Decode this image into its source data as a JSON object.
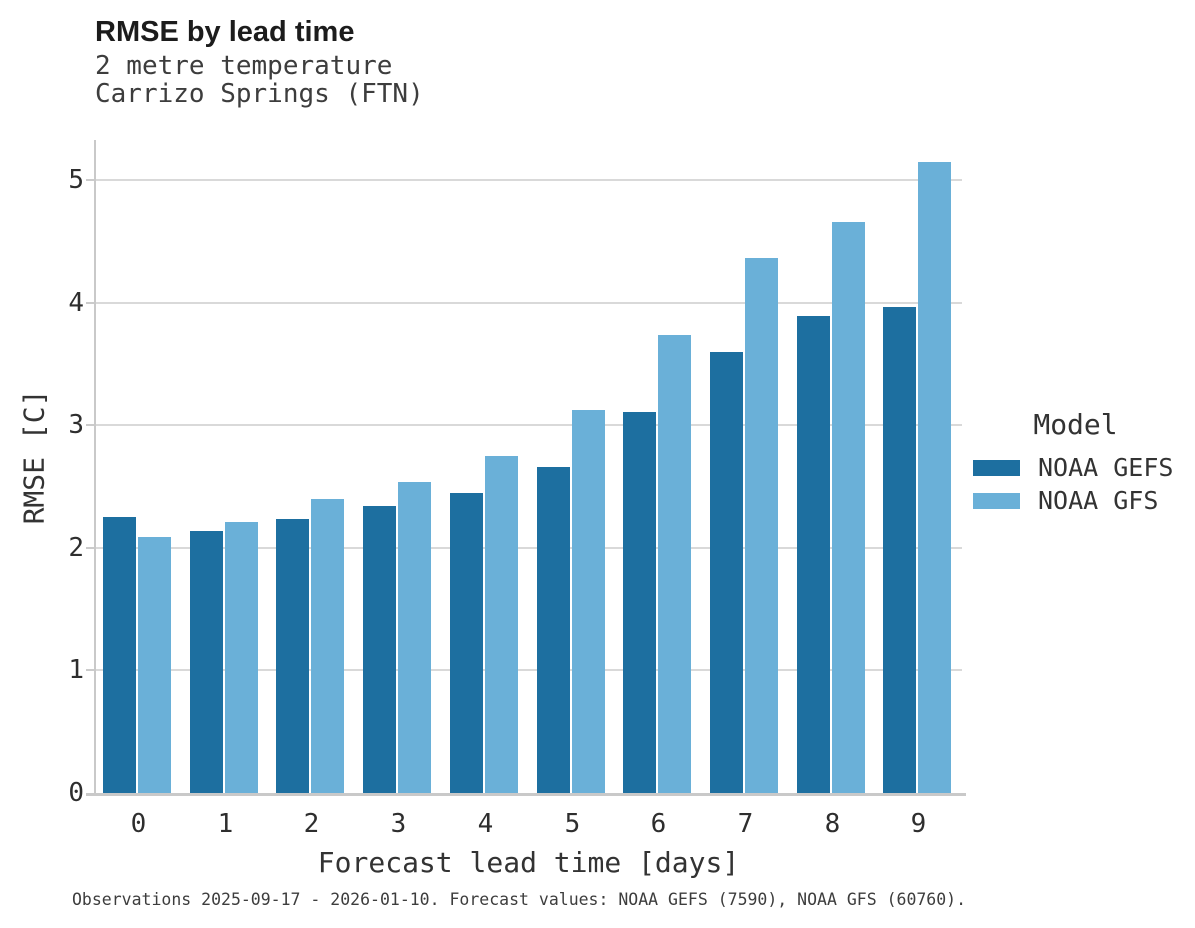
{
  "chart_data": {
    "type": "bar",
    "grouped": true,
    "title": "RMSE by lead time",
    "subtitle": [
      "2 metre temperature",
      "Carrizo Springs (FTN)"
    ],
    "categories": [
      "0",
      "1",
      "2",
      "3",
      "4",
      "5",
      "6",
      "7",
      "8",
      "9"
    ],
    "series": [
      {
        "name": "NOAA GEFS",
        "color": "#1d6fa0",
        "values": [
          2.25,
          2.14,
          2.24,
          2.34,
          2.45,
          2.66,
          3.11,
          3.6,
          3.89,
          3.97
        ]
      },
      {
        "name": "NOAA GFS",
        "color": "#6ab0d8",
        "values": [
          2.09,
          2.21,
          2.4,
          2.54,
          2.75,
          3.13,
          3.74,
          4.37,
          4.66,
          5.15
        ]
      }
    ],
    "xlabel": "Forecast lead time [days]",
    "ylabel": "RMSE [C]",
    "ylim": [
      0,
      5.33
    ],
    "yticks": [
      0,
      1,
      2,
      3,
      4,
      5
    ],
    "grid": "horizontal",
    "legend": {
      "title": "Model",
      "position": "right"
    },
    "colors": {
      "gridline": "#d9d9d9",
      "spine": "#c9c9c9"
    }
  },
  "footer": {
    "text": "Observations 2025-09-17 - 2026-01-10. Forecast values: NOAA GEFS (7590), NOAA GFS (60760)."
  }
}
